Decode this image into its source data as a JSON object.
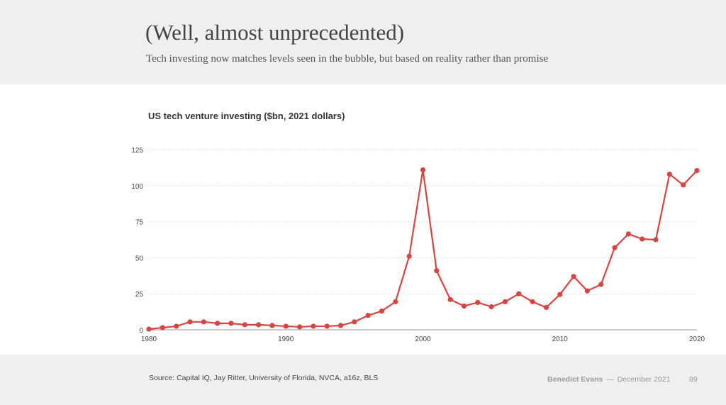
{
  "slide": {
    "title": "(Well, almost unprecedented)",
    "subtitle": "Tech investing now matches levels seen in the bubble, but based on reality rather than promise",
    "source": "Source: Capital IQ, Jay Ritter, University of Florida, NVCA, a16z, BLS",
    "author": "Benedict Evans",
    "separator": "—",
    "date": "December 2021",
    "page": "89"
  },
  "chart_data": {
    "type": "line",
    "title": "US tech venture investing ($bn, 2021 dollars)",
    "xlabel": "",
    "ylabel": "",
    "xlim": [
      1980,
      2020
    ],
    "ylim": [
      0,
      125
    ],
    "x_ticks": [
      1980,
      1990,
      2000,
      2010,
      2020
    ],
    "y_ticks": [
      0,
      25,
      50,
      75,
      100,
      125
    ],
    "grid": "horizontal-dotted",
    "legend": "none",
    "series_color": "#d64541",
    "series": [
      {
        "x": [
          1980,
          1981,
          1982,
          1983,
          1984,
          1985,
          1986,
          1987,
          1988,
          1989,
          1990,
          1991,
          1992,
          1993,
          1994,
          1995,
          1996,
          1997,
          1998,
          1999,
          2000,
          2001,
          2002,
          2003,
          2004,
          2005,
          2006,
          2007,
          2008,
          2009,
          2010,
          2011,
          2012,
          2013,
          2014,
          2015,
          2016,
          2017,
          2018,
          2019,
          2020
        ],
        "values": [
          0.5,
          1.5,
          2.5,
          5.5,
          5.5,
          4.5,
          4.5,
          3.5,
          3.5,
          3,
          2.5,
          2,
          2.5,
          2.5,
          3,
          5.5,
          10,
          13,
          19.5,
          51,
          111,
          41,
          21,
          16.5,
          19,
          16,
          19.5,
          25,
          19.5,
          15.5,
          24.5,
          37,
          27,
          31.5,
          57,
          66.5,
          63,
          62.5,
          108,
          100.5,
          110.5
        ]
      }
    ]
  }
}
